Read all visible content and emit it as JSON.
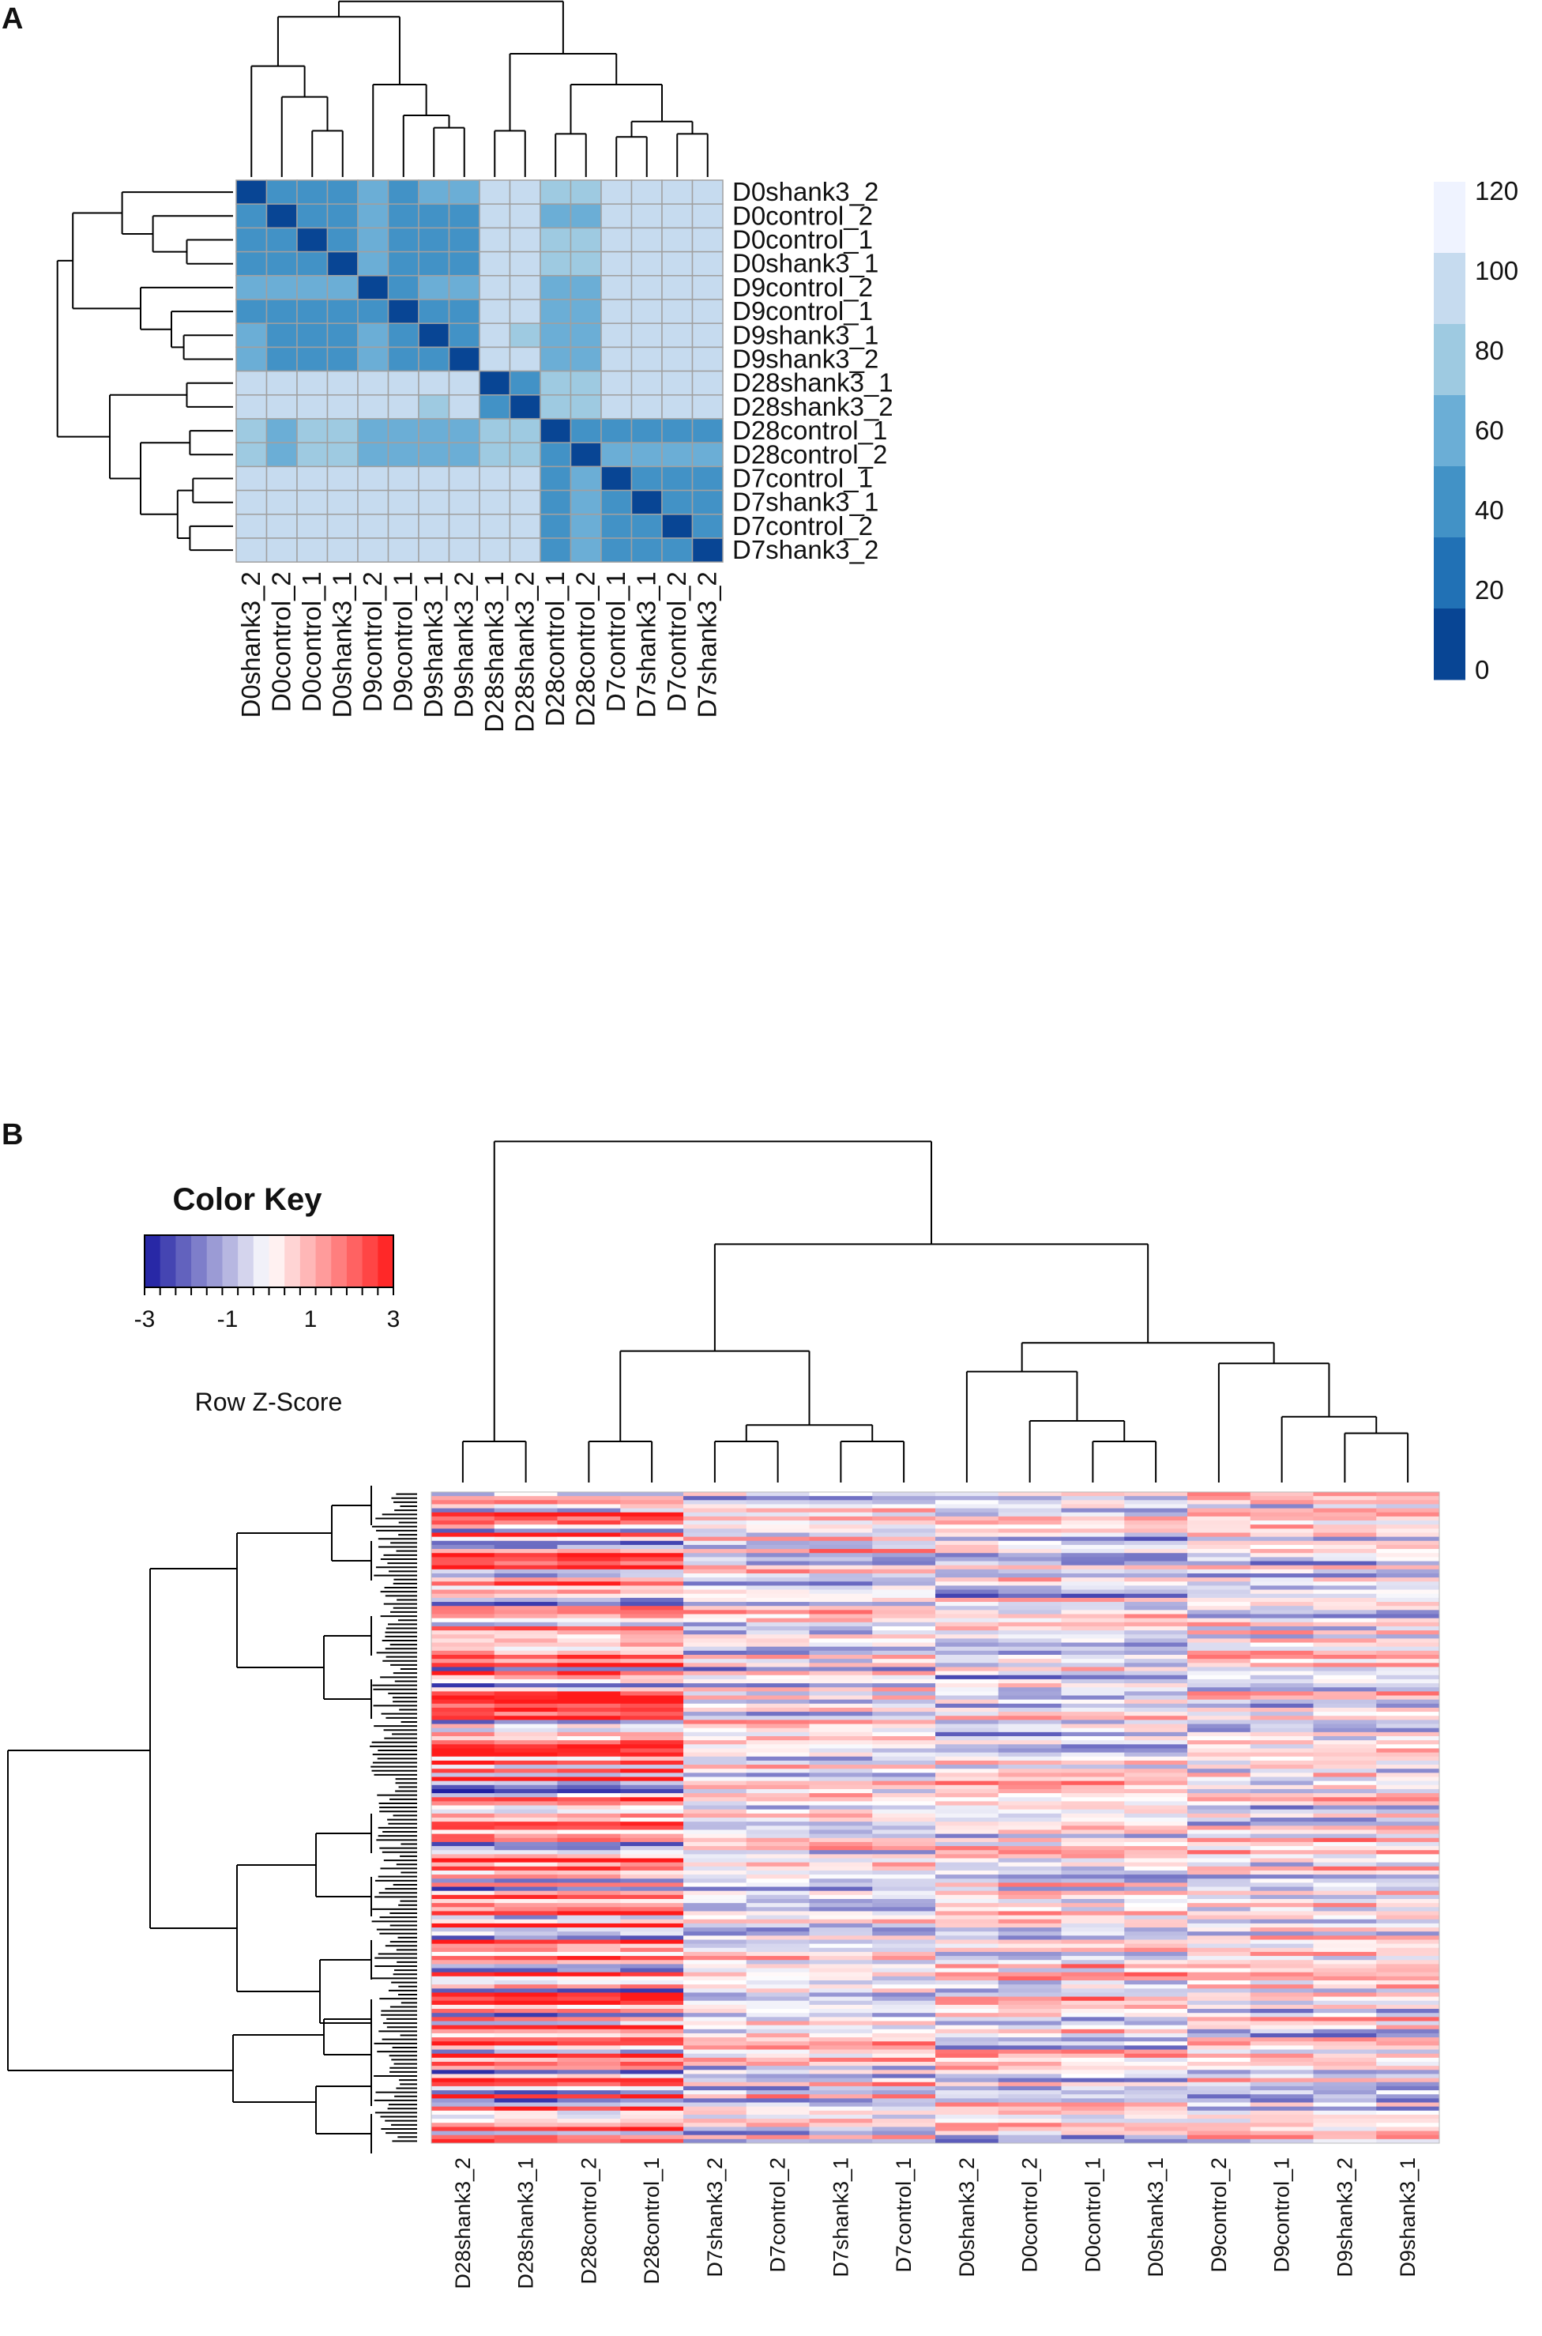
{
  "chart_data": [
    {
      "type": "heatmap",
      "panel": "A",
      "title": "",
      "row_labels": [
        "D0shank3_2",
        "D0control_2",
        "D0control_1",
        "D0shank3_1",
        "D9control_2",
        "D9control_1",
        "D9shank3_1",
        "D9shank3_2",
        "D28shank3_1",
        "D28shank3_2",
        "D28control_1",
        "D28control_2",
        "D7control_1",
        "D7shank3_1",
        "D7control_2",
        "D7shank3_2"
      ],
      "col_labels": [
        "D0shank3_2",
        "D0control_2",
        "D0control_1",
        "D0shank3_1",
        "D9control_2",
        "D9control_1",
        "D9shank3_1",
        "D9shank3_2",
        "D28shank3_1",
        "D28shank3_2",
        "D28control_1",
        "D28control_2",
        "D7control_1",
        "D7shank3_1",
        "D7control_2",
        "D7shank3_2"
      ],
      "values": [
        [
          0,
          55,
          55,
          55,
          70,
          55,
          70,
          70,
          110,
          110,
          90,
          90,
          110,
          110,
          110,
          110
        ],
        [
          55,
          0,
          55,
          55,
          75,
          55,
          55,
          55,
          100,
          100,
          75,
          75,
          110,
          100,
          100,
          100
        ],
        [
          55,
          55,
          0,
          40,
          75,
          55,
          55,
          55,
          110,
          115,
          85,
          85,
          110,
          110,
          110,
          110
        ],
        [
          55,
          55,
          40,
          0,
          75,
          55,
          55,
          55,
          110,
          100,
          90,
          90,
          110,
          110,
          110,
          110
        ],
        [
          70,
          75,
          75,
          75,
          0,
          55,
          60,
          70,
          100,
          100,
          75,
          75,
          115,
          100,
          115,
          115
        ],
        [
          55,
          55,
          55,
          55,
          55,
          0,
          40,
          40,
          100,
          100,
          75,
          75,
          100,
          100,
          100,
          100
        ],
        [
          70,
          55,
          55,
          55,
          60,
          40,
          0,
          40,
          100,
          90,
          75,
          75,
          100,
          100,
          100,
          100
        ],
        [
          70,
          55,
          55,
          55,
          70,
          40,
          40,
          0,
          100,
          100,
          75,
          75,
          100,
          100,
          100,
          100
        ],
        [
          115,
          100,
          115,
          115,
          100,
          100,
          100,
          100,
          0,
          40,
          80,
          90,
          100,
          100,
          100,
          100
        ],
        [
          115,
          100,
          115,
          100,
          100,
          100,
          90,
          100,
          40,
          0,
          80,
          90,
          100,
          100,
          100,
          100
        ],
        [
          90,
          75,
          85,
          90,
          75,
          75,
          75,
          75,
          80,
          80,
          0,
          40,
          55,
          55,
          55,
          55
        ],
        [
          90,
          75,
          85,
          90,
          75,
          75,
          75,
          75,
          90,
          90,
          40,
          0,
          60,
          60,
          70,
          60
        ],
        [
          115,
          115,
          115,
          115,
          115,
          100,
          100,
          100,
          100,
          100,
          55,
          70,
          0,
          40,
          55,
          40
        ],
        [
          115,
          100,
          115,
          115,
          100,
          100,
          100,
          100,
          100,
          100,
          55,
          70,
          40,
          0,
          40,
          40
        ],
        [
          115,
          100,
          115,
          115,
          115,
          100,
          100,
          100,
          100,
          100,
          55,
          70,
          55,
          40,
          0,
          40
        ],
        [
          115,
          100,
          115,
          115,
          100,
          100,
          100,
          100,
          100,
          100,
          55,
          70,
          40,
          40,
          40,
          0
        ]
      ],
      "legend": {
        "ticks": [
          "120",
          "100",
          "80",
          "60",
          "40",
          "20",
          "0"
        ],
        "min": 0,
        "max": 120
      },
      "colors": [
        "#084594",
        "#2171b5",
        "#4292c6",
        "#6baed6",
        "#9ecae1",
        "#c6dbef",
        "#eff3ff"
      ],
      "grid_color": "#a0a0a0"
    },
    {
      "type": "heatmap",
      "panel": "B",
      "title": "Color Key",
      "legend_label": "Row Z-Score",
      "legend_ticks": [
        "-3",
        "-1",
        "1",
        "3"
      ],
      "scale_range": [
        -3,
        3
      ],
      "col_labels": [
        "D28shank3_2",
        "D28shank3_1",
        "D28control_2",
        "D28control_1",
        "D7shank3_2",
        "D7control_2",
        "D7shank3_1",
        "D7control_1",
        "D0shank3_2",
        "D0control_2",
        "D0control_1",
        "D0shank3_1",
        "D9control_2",
        "D9control_1",
        "D9shank3_2",
        "D9shank3_1"
      ],
      "row_count": 160,
      "group_means": [
        1.6,
        0.0,
        -0.3,
        0.2
      ],
      "colors": {
        "low": "#1a1aa0",
        "mid": "#ffffff",
        "high": "#ff1a1a"
      }
    }
  ],
  "panels": {
    "a_label": "A",
    "b_label": "B"
  }
}
